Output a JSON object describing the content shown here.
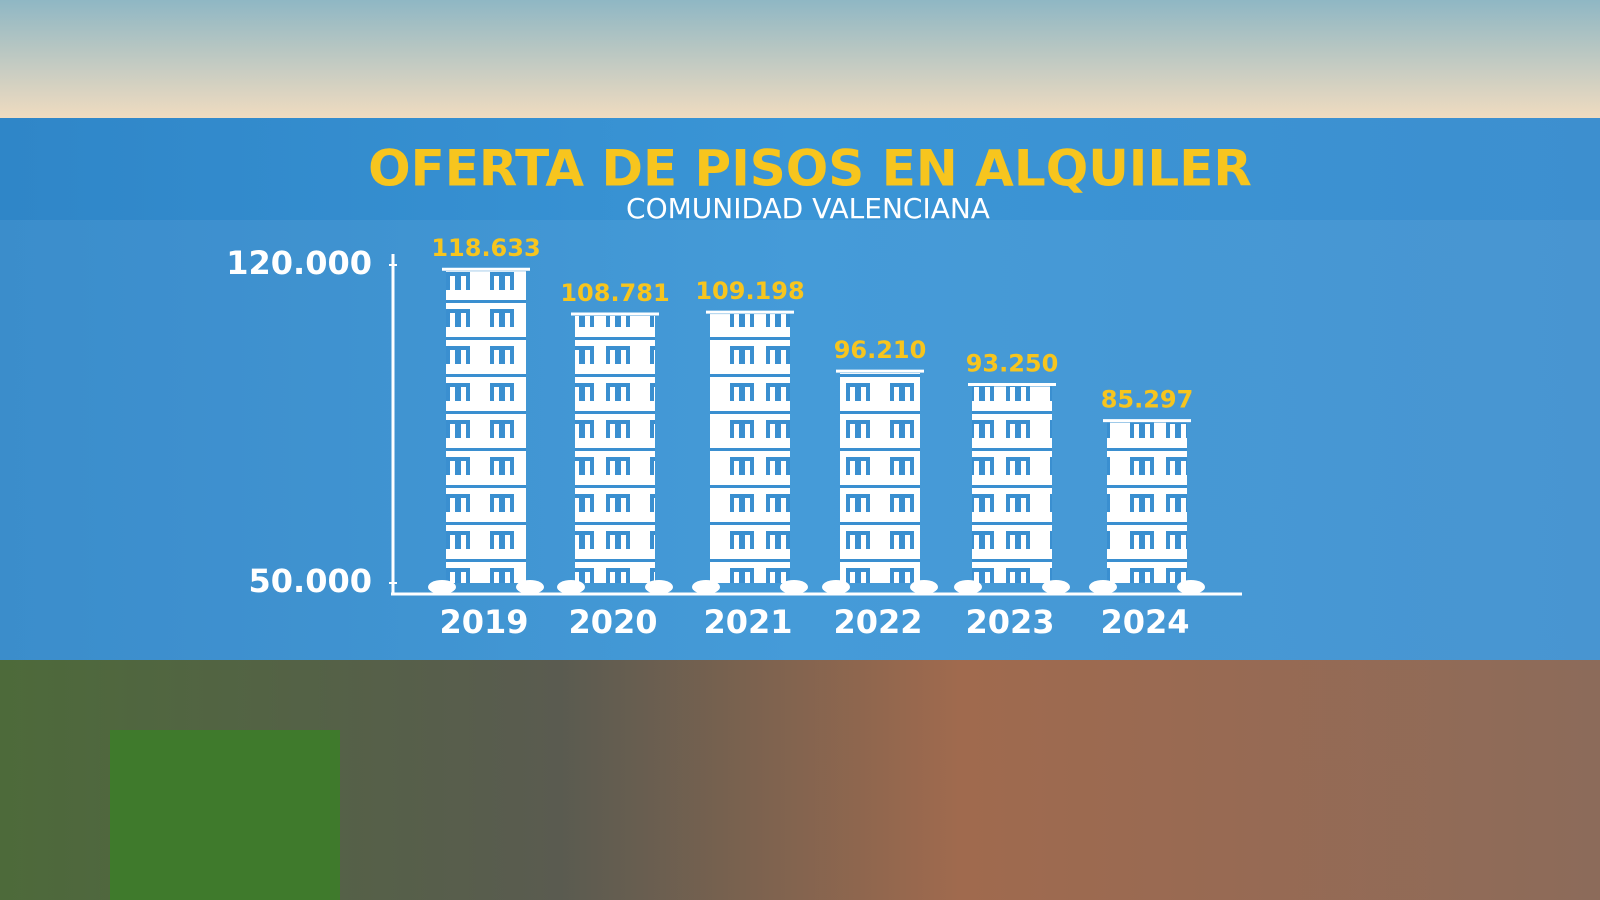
{
  "chart_data": {
    "type": "bar",
    "title": "OFERTA DE PISOS EN ALQUILER",
    "subtitle": "COMUNIDAD VALENCIANA",
    "categories": [
      "2019",
      "2020",
      "2021",
      "2022",
      "2023",
      "2024"
    ],
    "values": [
      118633,
      108781,
      109198,
      96210,
      93250,
      85297
    ],
    "value_labels": [
      "118.633",
      "108.781",
      "109.198",
      "96.210",
      "93.250",
      "85.297"
    ],
    "color": "#ffffff",
    "ylim": [
      50000,
      120000
    ],
    "yticks": [
      {
        "value": 50000,
        "label": "50.000"
      },
      {
        "value": 120000,
        "label": "120.000"
      }
    ]
  }
}
